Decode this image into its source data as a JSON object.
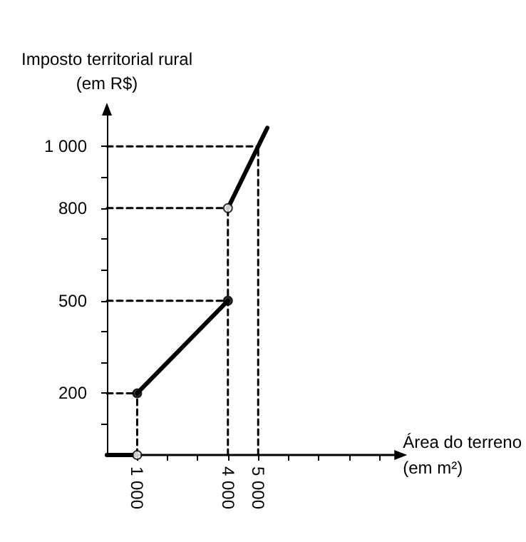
{
  "chart_data": {
    "type": "line",
    "xlabel": "Área do terreno\n(em m²)",
    "ylabel": "Imposto territorial rural\n(em R$)",
    "xlim": [
      0,
      9500
    ],
    "ylim": [
      0,
      1100
    ],
    "xticks": [
      {
        "value": 1000,
        "label": "1 000"
      },
      {
        "value": 2000,
        "label": null
      },
      {
        "value": 3000,
        "label": null
      },
      {
        "value": 4000,
        "label": "4 000"
      },
      {
        "value": 5000,
        "label": "5 000"
      },
      {
        "value": 6000,
        "label": null
      },
      {
        "value": 7000,
        "label": null
      },
      {
        "value": 8000,
        "label": null
      },
      {
        "value": 9000,
        "label": null
      }
    ],
    "yticks": [
      {
        "value": 100,
        "label": null
      },
      {
        "value": 200,
        "label": "200"
      },
      {
        "value": 300,
        "label": null
      },
      {
        "value": 400,
        "label": null
      },
      {
        "value": 500,
        "label": "500"
      },
      {
        "value": 600,
        "label": null
      },
      {
        "value": 700,
        "label": null
      },
      {
        "value": 800,
        "label": "800"
      },
      {
        "value": 900,
        "label": null
      },
      {
        "value": 1000,
        "label": "1 000"
      }
    ],
    "grid": false,
    "series": [
      {
        "color": "#000000",
        "x": [
          0,
          1000
        ],
        "values": [
          0,
          0
        ],
        "line_style": "solid",
        "marker": "none"
      },
      {
        "color": "#000000",
        "x": [
          1000,
          4000
        ],
        "values": [
          200,
          500
        ],
        "line_style": "solid",
        "marker": "none"
      },
      {
        "color": "#000000",
        "x": [
          4000,
          5300
        ],
        "values": [
          800,
          1060
        ],
        "line_style": "solid",
        "marker": "none"
      },
      {
        "type": "line",
        "color": "#000000",
        "x": [
          0,
          1000
        ],
        "values": [
          200,
          200
        ],
        "line_style": "dashed",
        "marker": "none"
      },
      {
        "type": "line",
        "color": "#000000",
        "x": [
          1000,
          1000
        ],
        "values": [
          0,
          200
        ],
        "line_style": "dashed",
        "marker": "none"
      },
      {
        "type": "line",
        "color": "#000000",
        "x": [
          0,
          4000
        ],
        "values": [
          500,
          500
        ],
        "line_style": "dashed",
        "marker": "none"
      },
      {
        "type": "line",
        "color": "#000000",
        "x": [
          0,
          4000
        ],
        "values": [
          800,
          800
        ],
        "line_style": "dashed",
        "marker": "none"
      },
      {
        "type": "line",
        "color": "#000000",
        "x": [
          4000,
          4000
        ],
        "values": [
          0,
          800
        ],
        "line_style": "dashed",
        "marker": "none"
      },
      {
        "type": "line",
        "color": "#000000",
        "x": [
          0,
          5000
        ],
        "values": [
          1000,
          1000
        ],
        "line_style": "dashed",
        "marker": "none"
      },
      {
        "type": "line",
        "color": "#000000",
        "x": [
          5000,
          5000
        ],
        "values": [
          0,
          1000
        ],
        "line_style": "dashed",
        "marker": "none"
      },
      {
        "type": "scatter",
        "color": "#000000",
        "x": [
          1000,
          4000
        ],
        "values": [
          200,
          500
        ],
        "marker": "circle"
      },
      {
        "type": "scatter",
        "color": "#ffffff",
        "x": [
          1000,
          4000
        ],
        "values": [
          0,
          800
        ],
        "marker": "circle"
      }
    ]
  }
}
